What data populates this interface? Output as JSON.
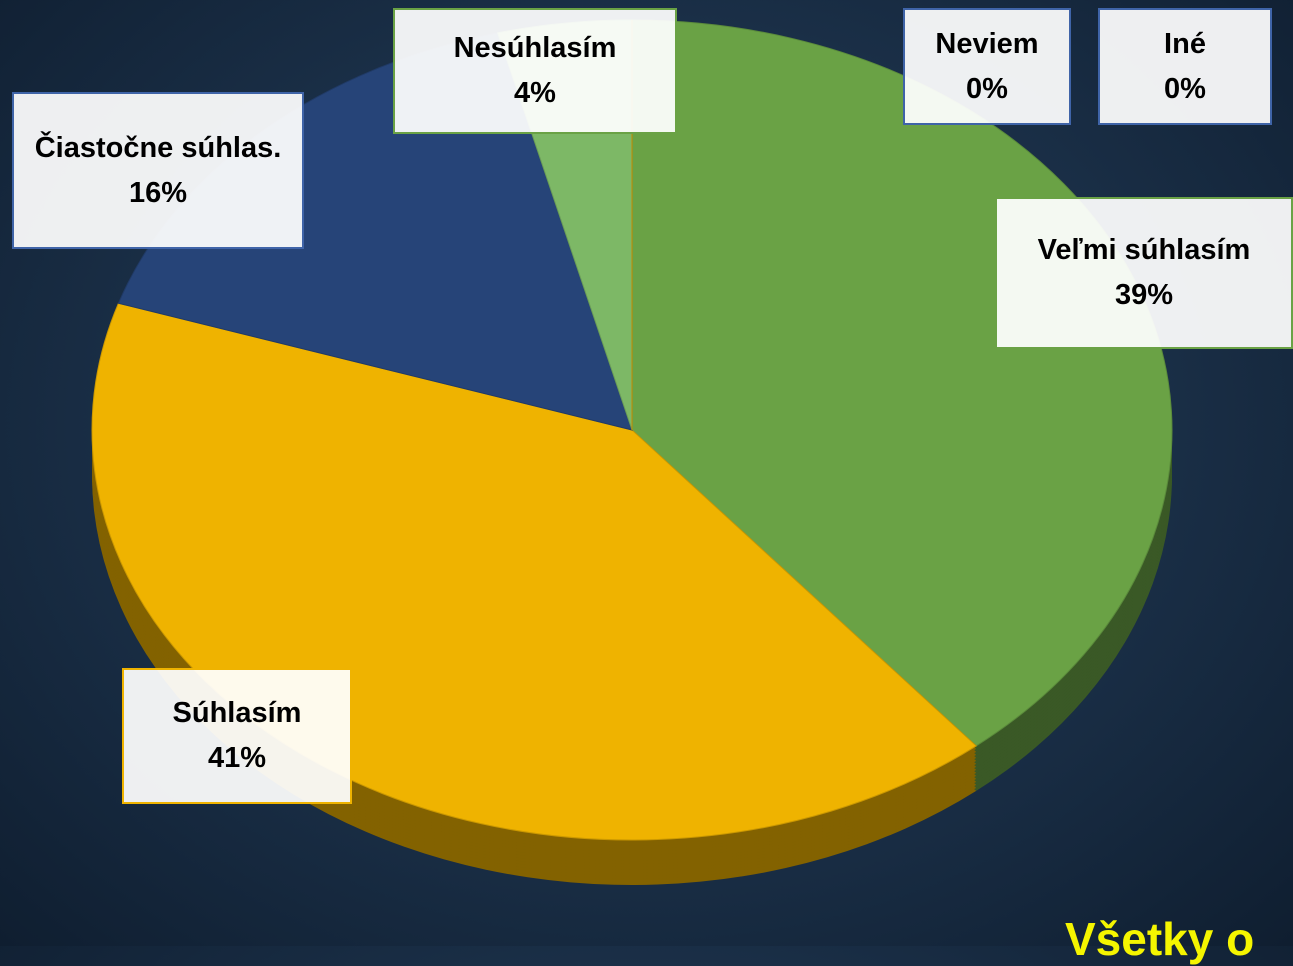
{
  "chart_data": {
    "type": "pie",
    "categories": [
      "Veľmi súhlasím",
      "Súhlasím",
      "Čiastočne súhlas.",
      "Nesúhlasím",
      "Neviem",
      "Iné"
    ],
    "values": [
      39,
      41,
      16,
      4,
      0,
      0
    ],
    "value_labels": [
      "39%",
      "41%",
      "16%",
      "4%",
      "0%",
      "0%"
    ],
    "colors": [
      "#6aa245",
      "#efb300",
      "#264478",
      "#7db866",
      "#3f64a8",
      "#e8a200"
    ],
    "annotation": "Všetky o"
  }
}
